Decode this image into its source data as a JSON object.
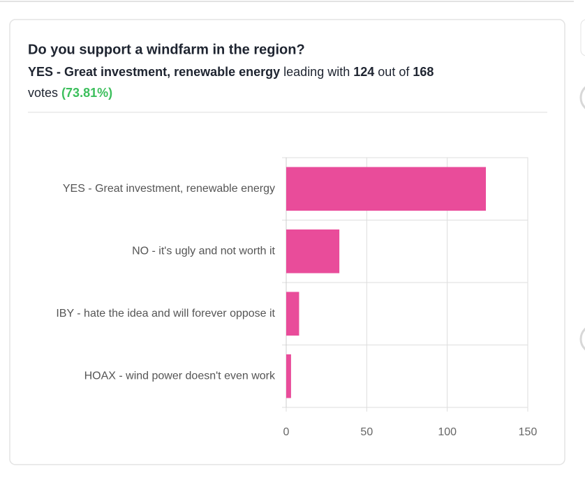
{
  "chart_data": {
    "type": "bar",
    "orientation": "horizontal",
    "title": "Do you support a windfarm in the region?",
    "summary": {
      "leading_with": "leading with",
      "leader_votes": 124,
      "out_of": "out of",
      "total": 168,
      "votes": "votes",
      "percent": "(73.81%)"
    },
    "categories": [
      "YES - Great investment, renewable energy",
      "NO - it's ugly and not worth it",
      "IBY - hate the idea and will forever oppose it",
      "HOAX - wind power doesn't even work"
    ],
    "values": [
      124,
      33,
      8,
      3
    ],
    "color": "#e94c9a",
    "xlim": [
      0,
      150
    ],
    "xticks": [
      0,
      50,
      100,
      150
    ],
    "grid": true
  }
}
